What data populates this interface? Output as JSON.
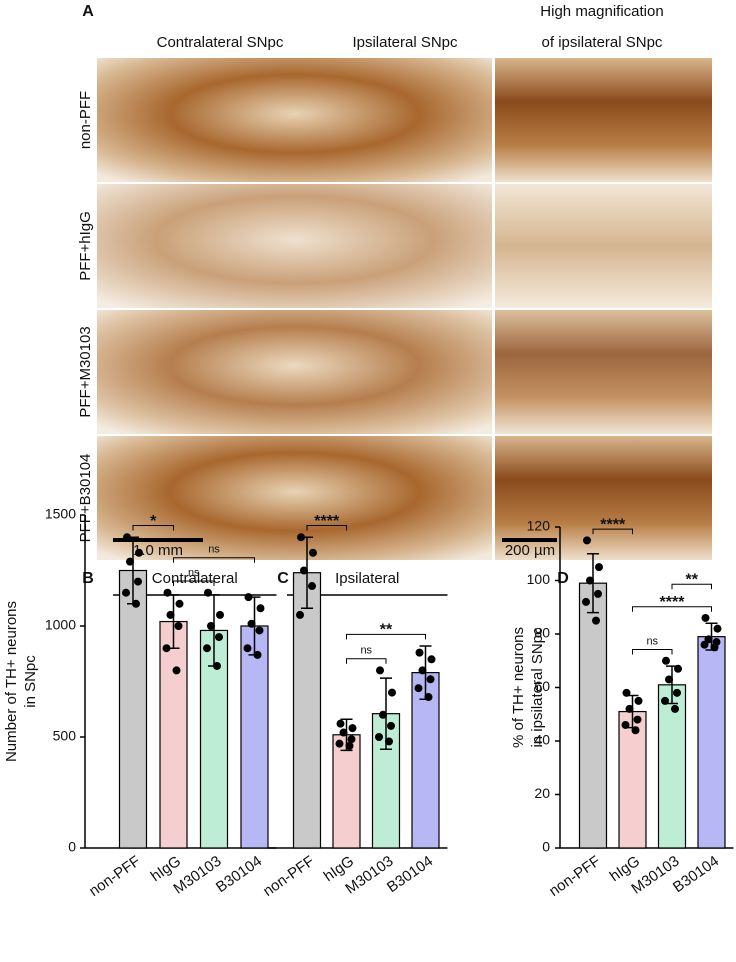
{
  "panel_a": {
    "label": "A",
    "column_headers": [
      "Contralateral SNpc",
      "Ipsilateral SNpc"
    ],
    "high_mag_header": [
      "High magnification",
      "of ipsilateral SNpc"
    ],
    "row_labels": [
      "non-PFF",
      "PFF+hIgG",
      "PFF+M30103",
      "PFF+B30104"
    ],
    "scale_bars": [
      "1.0 mm",
      "200 µm"
    ]
  },
  "chart_data": [
    {
      "type": "bar",
      "panel": "B",
      "group_label": "Contralateral",
      "ylabel": [
        "Number of TH+ neurons",
        "in SNpc"
      ],
      "categories": [
        "non-PFF",
        "hIgG",
        "M30103",
        "B30104"
      ],
      "colors": [
        "#c9c9c9",
        "#f5cfcf",
        "#bdeed5",
        "#b7b7f5"
      ],
      "values": [
        1250,
        1020,
        980,
        1000
      ],
      "errors": [
        150,
        120,
        160,
        130
      ],
      "points": [
        [
          1400,
          1330,
          1290,
          1200,
          1150,
          1100
        ],
        [
          1150,
          1100,
          1050,
          1000,
          900,
          800
        ],
        [
          1150,
          1050,
          1000,
          950,
          900,
          820
        ],
        [
          1130,
          1080,
          1010,
          980,
          900,
          870
        ]
      ],
      "comparisons": [
        {
          "groups": [
            1,
            2
          ],
          "label": "ns"
        },
        {
          "groups": [
            1,
            3
          ],
          "label": "ns"
        },
        {
          "groups": [
            0,
            1
          ],
          "label": "*"
        }
      ],
      "ylim": [
        0,
        1500
      ],
      "yticks": [
        0,
        500,
        1000,
        1500
      ]
    },
    {
      "type": "bar",
      "panel": "C",
      "group_label": "Ipsilateral",
      "categories": [
        "non-PFF",
        "hIgG",
        "M30103",
        "B30104"
      ],
      "colors": [
        "#c9c9c9",
        "#f5cfcf",
        "#bdeed5",
        "#b7b7f5"
      ],
      "values": [
        1240,
        510,
        605,
        790
      ],
      "errors": [
        160,
        70,
        160,
        120
      ],
      "points": [
        [
          1400,
          1330,
          1250,
          1180,
          1050
        ],
        [
          560,
          540,
          520,
          490,
          470,
          460
        ],
        [
          800,
          700,
          600,
          550,
          500,
          480
        ],
        [
          880,
          850,
          800,
          760,
          720,
          680
        ]
      ],
      "comparisons": [
        {
          "groups": [
            1,
            2
          ],
          "label": "ns"
        },
        {
          "groups": [
            1,
            3
          ],
          "label": "**"
        },
        {
          "groups": [
            0,
            1
          ],
          "label": "****"
        }
      ],
      "ylim": [
        0,
        1500
      ]
    },
    {
      "type": "bar",
      "panel": "D",
      "ylabel": [
        "% of TH+ neurons",
        "in ipsilateral SNpc"
      ],
      "categories": [
        "non-PFF",
        "hIgG",
        "M30103",
        "B30104"
      ],
      "colors": [
        "#c9c9c9",
        "#f5cfcf",
        "#bdeed5",
        "#b7b7f5"
      ],
      "values": [
        99,
        51,
        61,
        79
      ],
      "errors": [
        11,
        6,
        7,
        5
      ],
      "points": [
        [
          115,
          105,
          100,
          95,
          92,
          85
        ],
        [
          58,
          55,
          52,
          48,
          46,
          44
        ],
        [
          70,
          67,
          63,
          58,
          55,
          52
        ],
        [
          86,
          82,
          78,
          77,
          76,
          75
        ]
      ],
      "comparisons": [
        {
          "groups": [
            1,
            2
          ],
          "label": "ns"
        },
        {
          "groups": [
            1,
            3
          ],
          "label": "****"
        },
        {
          "groups": [
            2,
            3
          ],
          "label": "**"
        },
        {
          "groups": [
            0,
            1
          ],
          "label": "****"
        }
      ],
      "ylim": [
        0,
        120
      ],
      "yticks": [
        0,
        20,
        40,
        60,
        80,
        100,
        120
      ]
    }
  ]
}
